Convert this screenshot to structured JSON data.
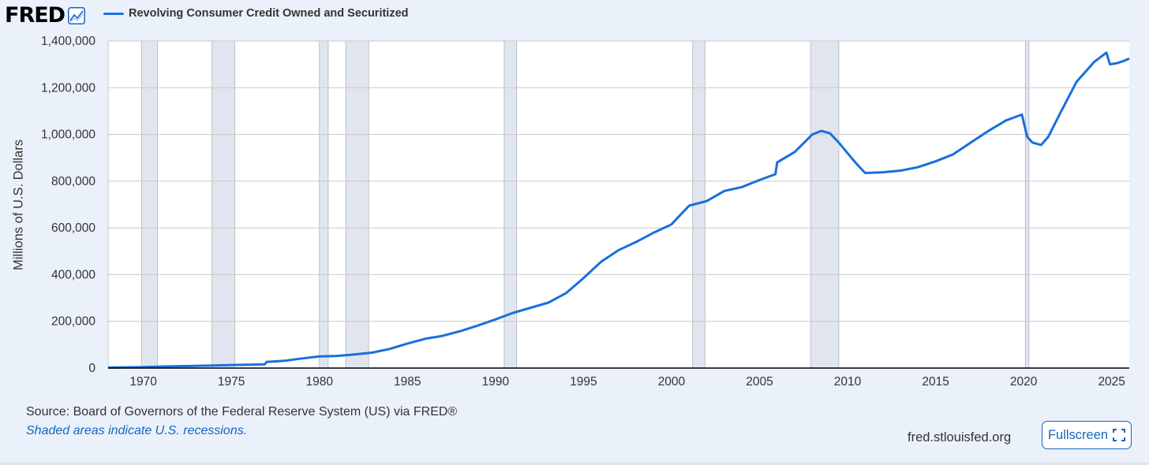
{
  "header": {
    "logo_text": "FRED",
    "logo_icon": "chart-line-icon"
  },
  "chart_data": {
    "type": "line",
    "title": "",
    "ylabel": "Millions of U.S. Dollars",
    "xlabel": "",
    "ylim": [
      0,
      1400000
    ],
    "xlim": [
      1968.0,
      2026.0
    ],
    "grid": true,
    "legend_placement": "top-left",
    "y_ticks": [
      {
        "value": 0,
        "label": "0"
      },
      {
        "value": 200000,
        "label": "200,000"
      },
      {
        "value": 400000,
        "label": "400,000"
      },
      {
        "value": 600000,
        "label": "600,000"
      },
      {
        "value": 800000,
        "label": "800,000"
      },
      {
        "value": 1000000,
        "label": "1,000,000"
      },
      {
        "value": 1200000,
        "label": "1,200,000"
      },
      {
        "value": 1400000,
        "label": "1,400,000"
      }
    ],
    "x_ticks": [
      {
        "value": 1970,
        "label": "1970"
      },
      {
        "value": 1975,
        "label": "1975"
      },
      {
        "value": 1980,
        "label": "1980"
      },
      {
        "value": 1985,
        "label": "1985"
      },
      {
        "value": 1990,
        "label": "1990"
      },
      {
        "value": 1995,
        "label": "1995"
      },
      {
        "value": 2000,
        "label": "2000"
      },
      {
        "value": 2005,
        "label": "2005"
      },
      {
        "value": 2010,
        "label": "2010"
      },
      {
        "value": 2015,
        "label": "2015"
      },
      {
        "value": 2020,
        "label": "2020"
      },
      {
        "value": 2025,
        "label": "2025"
      }
    ],
    "recessions": [
      [
        1969.9,
        1970.8
      ],
      [
        1973.9,
        1975.2
      ],
      [
        1980.0,
        1980.5
      ],
      [
        1981.5,
        1982.8
      ],
      [
        1990.5,
        1991.2
      ],
      [
        2001.2,
        2001.9
      ],
      [
        2007.9,
        2009.5
      ],
      [
        2020.1,
        2020.3
      ]
    ],
    "series": [
      {
        "name": "Revolving Consumer Credit Owned and Securitized",
        "color": "#1a6fdc",
        "points": [
          [
            1968.0,
            2000
          ],
          [
            1969.0,
            3000
          ],
          [
            1970.0,
            4500
          ],
          [
            1971.0,
            6500
          ],
          [
            1972.0,
            8000
          ],
          [
            1973.0,
            9500
          ],
          [
            1974.0,
            11000
          ],
          [
            1975.0,
            13000
          ],
          [
            1976.0,
            14500
          ],
          [
            1976.9,
            16000
          ],
          [
            1977.0,
            26000
          ],
          [
            1978.0,
            31000
          ],
          [
            1979.0,
            41000
          ],
          [
            1980.0,
            50000
          ],
          [
            1981.0,
            52000
          ],
          [
            1982.0,
            58000
          ],
          [
            1983.0,
            66000
          ],
          [
            1984.0,
            82000
          ],
          [
            1985.0,
            105000
          ],
          [
            1986.0,
            125000
          ],
          [
            1987.0,
            138000
          ],
          [
            1988.0,
            158000
          ],
          [
            1989.0,
            182000
          ],
          [
            1990.0,
            208000
          ],
          [
            1991.0,
            236000
          ],
          [
            1992.0,
            258000
          ],
          [
            1993.0,
            280000
          ],
          [
            1994.0,
            320000
          ],
          [
            1995.0,
            385000
          ],
          [
            1996.0,
            455000
          ],
          [
            1997.0,
            505000
          ],
          [
            1998.0,
            540000
          ],
          [
            1999.0,
            580000
          ],
          [
            2000.0,
            615000
          ],
          [
            2001.0,
            695000
          ],
          [
            2002.0,
            715000
          ],
          [
            2003.0,
            758000
          ],
          [
            2004.0,
            775000
          ],
          [
            2005.0,
            805000
          ],
          [
            2005.9,
            830000
          ],
          [
            2006.0,
            880000
          ],
          [
            2007.0,
            925000
          ],
          [
            2008.0,
            1000000
          ],
          [
            2008.5,
            1015000
          ],
          [
            2009.0,
            1005000
          ],
          [
            2009.5,
            965000
          ],
          [
            2010.0,
            920000
          ],
          [
            2010.5,
            875000
          ],
          [
            2011.0,
            835000
          ],
          [
            2012.0,
            838000
          ],
          [
            2013.0,
            845000
          ],
          [
            2014.0,
            860000
          ],
          [
            2015.0,
            885000
          ],
          [
            2016.0,
            915000
          ],
          [
            2017.0,
            965000
          ],
          [
            2018.0,
            1015000
          ],
          [
            2019.0,
            1060000
          ],
          [
            2019.9,
            1085000
          ],
          [
            2020.2,
            990000
          ],
          [
            2020.5,
            965000
          ],
          [
            2021.0,
            955000
          ],
          [
            2021.4,
            990000
          ],
          [
            2022.0,
            1080000
          ],
          [
            2023.0,
            1225000
          ],
          [
            2024.0,
            1310000
          ],
          [
            2024.7,
            1350000
          ],
          [
            2024.9,
            1300000
          ],
          [
            2025.3,
            1305000
          ],
          [
            2025.7,
            1315000
          ],
          [
            2026.0,
            1325000
          ]
        ]
      }
    ]
  },
  "footer": {
    "source": "Source: Board of Governors of the Federal Reserve System (US) via FRED®",
    "note": "Shaded areas indicate U.S. recessions.",
    "site": "fred.stlouisfed.org",
    "fullscreen_label": "Fullscreen"
  }
}
